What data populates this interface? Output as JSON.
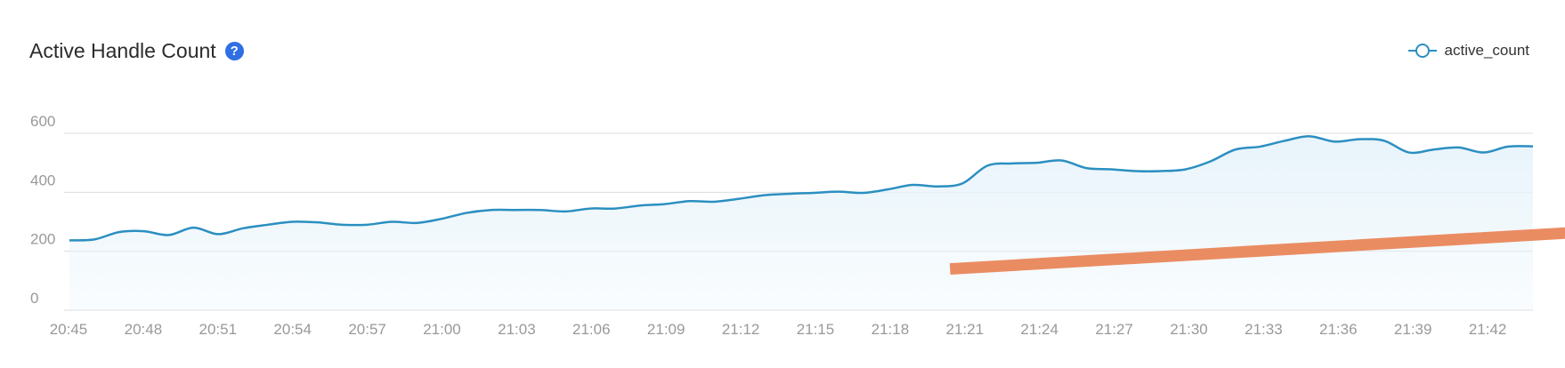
{
  "legend": {
    "label": "active_count"
  },
  "colors": {
    "line": "#2b8fc1",
    "area": "#e8f4fb",
    "grid": "#dcdcdc",
    "arrow": "#ea8c62",
    "axis_text": "#999999",
    "help": "#2f6fe4"
  },
  "icons": {
    "help": "question-circle-icon",
    "legend_marker": "line-circle-icon"
  },
  "chart_data": {
    "type": "area",
    "title": "Active Handle Count",
    "xlabel": "",
    "ylabel": "",
    "ylim": [
      0,
      600
    ],
    "yticks": [
      0,
      200,
      400,
      600
    ],
    "xticks": [
      "20:45",
      "20:48",
      "20:51",
      "20:54",
      "20:57",
      "21:00",
      "21:03",
      "21:06",
      "21:09",
      "21:12",
      "21:15",
      "21:18",
      "21:21",
      "21:24",
      "21:27",
      "21:30",
      "21:33",
      "21:36",
      "21:39",
      "21:42"
    ],
    "grid": true,
    "legend_position": "top-right",
    "series": [
      {
        "name": "active_count",
        "x": [
          0,
          1,
          2,
          3,
          4,
          5,
          6,
          7,
          8,
          9,
          10,
          11,
          12,
          13,
          14,
          15,
          16,
          17,
          18,
          19,
          20,
          21,
          22,
          23,
          24,
          25,
          26,
          27,
          28,
          29,
          30,
          31,
          32,
          33,
          34,
          35,
          36,
          37,
          38,
          39,
          40,
          41,
          42,
          43,
          44,
          45,
          46,
          47,
          48,
          49,
          50,
          51,
          52,
          53,
          54,
          55,
          56,
          57,
          58,
          59
        ],
        "y": [
          237,
          240,
          265,
          268,
          255,
          280,
          258,
          278,
          290,
          300,
          298,
          290,
          290,
          300,
          296,
          310,
          330,
          340,
          340,
          340,
          335,
          345,
          345,
          355,
          360,
          370,
          368,
          378,
          390,
          395,
          398,
          402,
          398,
          410,
          425,
          420,
          430,
          490,
          498,
          500,
          508,
          482,
          478,
          472,
          472,
          478,
          505,
          545,
          555,
          575,
          590,
          572,
          580,
          575,
          535,
          545,
          552,
          535,
          555,
          556
        ],
        "time_labels_note": ""
      }
    ],
    "annotations": [
      {
        "type": "arrow",
        "from": [
          35.5,
          140
        ],
        "to": [
          61.0,
          265
        ]
      }
    ]
  }
}
